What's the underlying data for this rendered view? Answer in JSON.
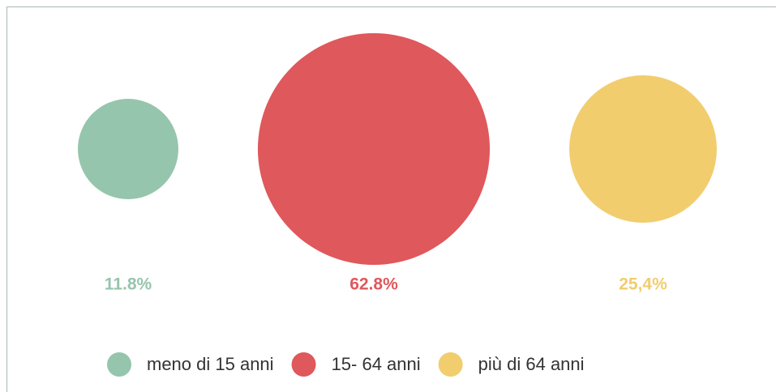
{
  "chart_data": {
    "type": "bubble",
    "categories": [
      "meno di 15 anni",
      "15- 64 anni",
      "più di 64 anni"
    ],
    "values": [
      11.8,
      62.8,
      25.4
    ],
    "value_labels": [
      "11.8%",
      "62.8%",
      "25,4%"
    ],
    "colors": [
      "#96c5ad",
      "#df585c",
      "#f1cd6e"
    ]
  }
}
